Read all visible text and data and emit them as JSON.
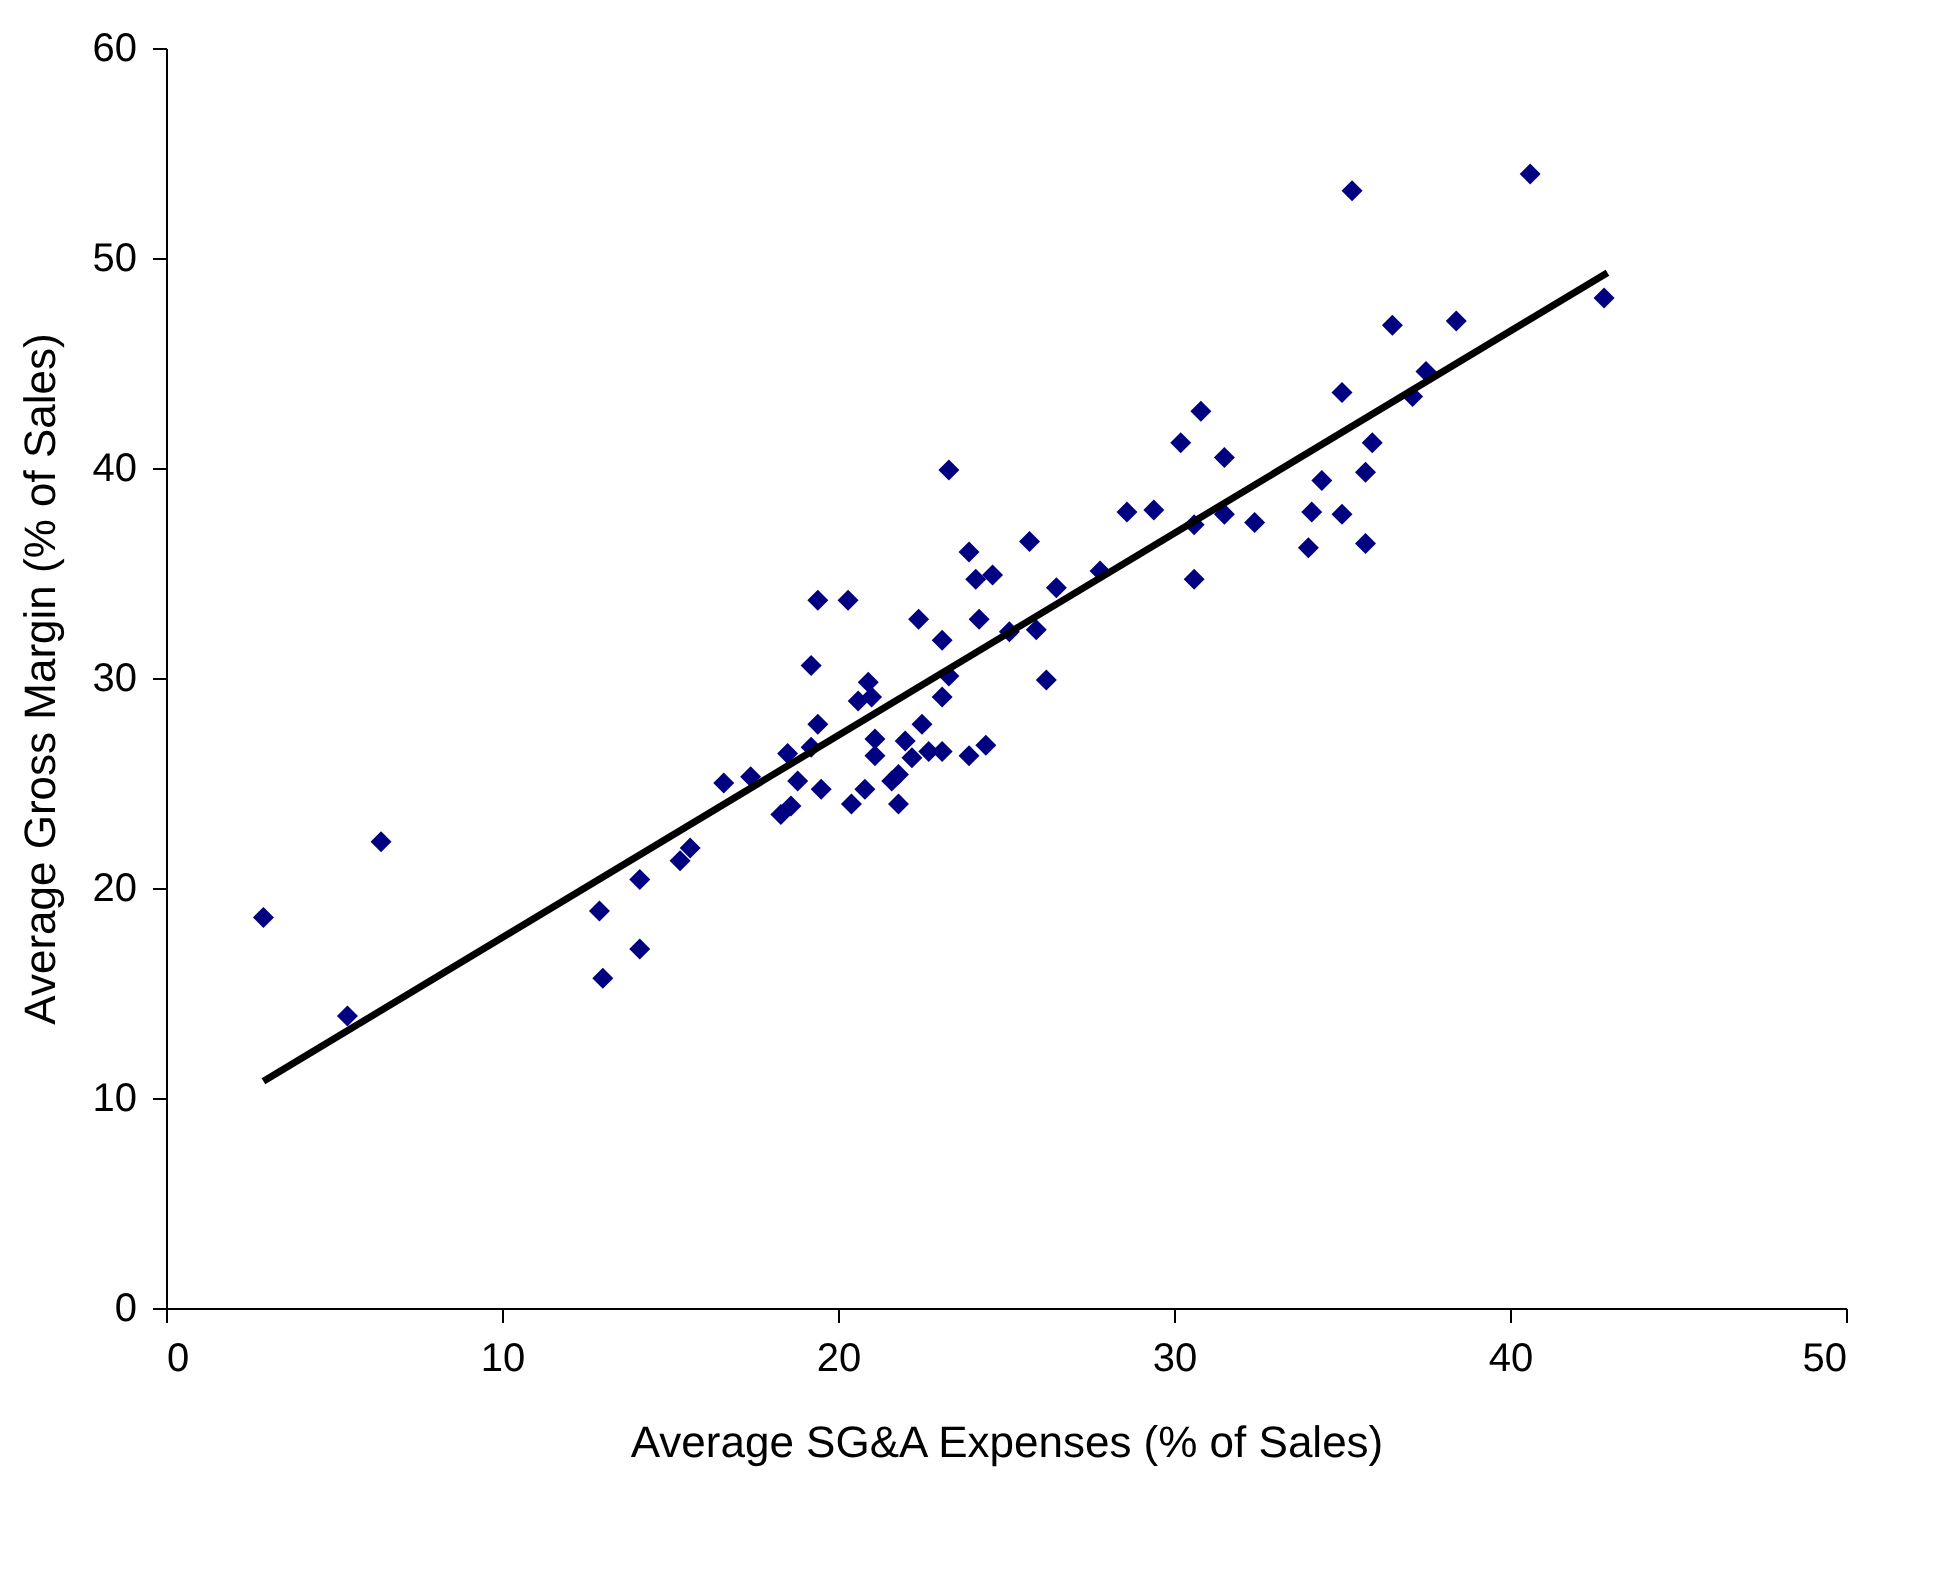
{
  "chart_data": {
    "type": "scatter",
    "xlabel": "Average SG&A Expenses (% of Sales)",
    "ylabel": "Average Gross Margin (% of Sales)",
    "xlim": [
      0,
      50
    ],
    "ylim": [
      0,
      60
    ],
    "xticks": [
      0,
      10,
      20,
      30,
      40,
      50
    ],
    "yticks": [
      0,
      10,
      20,
      30,
      40,
      50,
      60
    ],
    "grid": false,
    "series": [
      {
        "color": "#000080",
        "marker": "diamond",
        "x": [
          2.9,
          5.4,
          6.4,
          12.9,
          13.0,
          14.1,
          14.1,
          15.3,
          15.6,
          16.6,
          17.4,
          18.3,
          18.6,
          18.5,
          18.8,
          19.2,
          19.2,
          19.4,
          19.4,
          19.5,
          20.3,
          20.4,
          20.6,
          20.8,
          20.9,
          21.0,
          21.1,
          21.1,
          21.6,
          21.8,
          21.8,
          22.0,
          22.2,
          22.4,
          22.5,
          22.7,
          23.1,
          23.1,
          23.1,
          23.3,
          23.3,
          23.9,
          23.9,
          24.1,
          24.2,
          24.4,
          24.6,
          25.1,
          25.7,
          25.9,
          26.2,
          26.5,
          27.8,
          28.6,
          29.4,
          30.2,
          30.6,
          30.6,
          30.8,
          31.5,
          31.5,
          32.4,
          34.0,
          34.1,
          34.4,
          35.0,
          35.0,
          35.3,
          35.7,
          35.7,
          35.9,
          36.5,
          37.1,
          37.5,
          38.4,
          40.6,
          42.8
        ],
        "values": [
          18.6,
          13.9,
          22.2,
          18.9,
          15.7,
          20.4,
          17.1,
          21.3,
          21.9,
          25.0,
          25.3,
          23.5,
          23.9,
          26.4,
          25.1,
          30.6,
          26.7,
          33.7,
          27.8,
          24.7,
          33.7,
          24.0,
          28.9,
          24.7,
          29.8,
          29.1,
          27.1,
          26.3,
          25.1,
          25.4,
          24.0,
          27.0,
          26.2,
          32.8,
          27.8,
          26.5,
          31.8,
          29.1,
          26.5,
          39.9,
          30.1,
          36.0,
          26.3,
          34.7,
          32.8,
          26.8,
          34.9,
          32.2,
          36.5,
          32.3,
          29.9,
          34.3,
          35.1,
          37.9,
          38.0,
          41.2,
          37.3,
          34.7,
          42.7,
          40.5,
          37.8,
          37.4,
          36.2,
          37.9,
          39.4,
          43.6,
          37.8,
          53.2,
          39.8,
          36.4,
          41.2,
          46.8,
          43.4,
          44.6,
          47.0,
          54.0,
          48.1
        ]
      },
      {
        "type": "line",
        "color": "#000000",
        "marker": "none",
        "line_style": "solid",
        "x": [
          2.9,
          42.9
        ],
        "values": [
          10.8,
          49.3
        ]
      }
    ]
  }
}
